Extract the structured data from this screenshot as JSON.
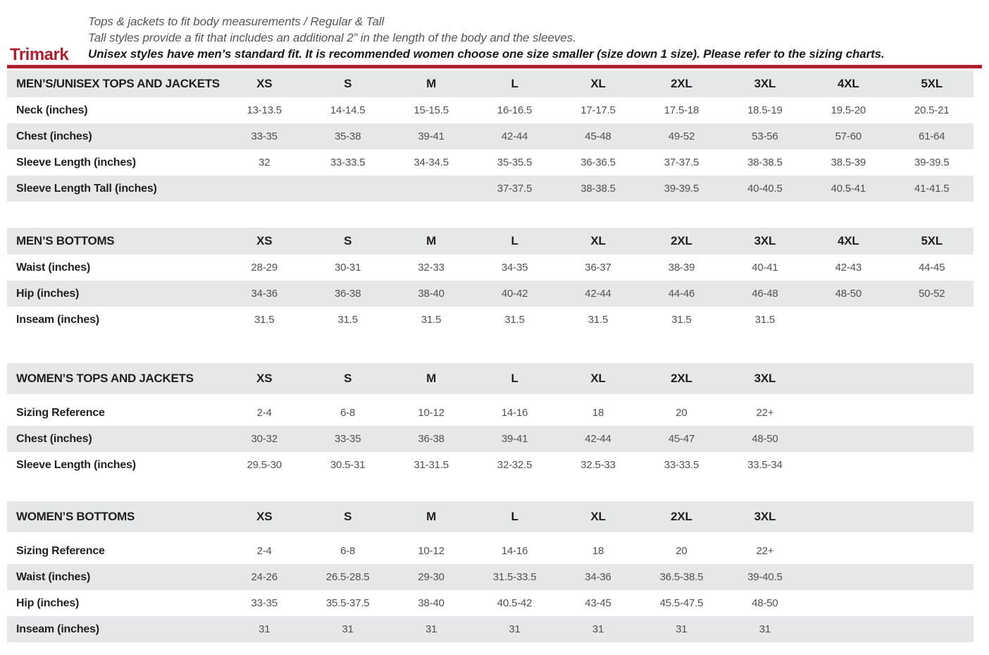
{
  "page": {
    "brand": "Trimark",
    "intro_line1": "Tops & jackets to fit body measurements / Regular & Tall",
    "intro_line2": "Tall styles provide a fit that includes an additional 2” in the length of the body and the sleeves.",
    "intro_line3": "Unisex styles have men’s standard fit. It is recommended women choose one size smaller (size down 1 size).  Please refer to the sizing charts.",
    "accent_color": "#ad1f2d",
    "row_alt_color": "#e6e7e8"
  },
  "tables": [
    {
      "title": "MEN’S/UNISEX TOPS AND JACKETS",
      "columns": [
        "XS",
        "S",
        "M",
        "L",
        "XL",
        "2XL",
        "3XL",
        "4XL",
        "5XL"
      ],
      "rows": [
        {
          "label": "Neck (inches)",
          "values": [
            "13-13.5",
            "14-14.5",
            "15-15.5",
            "16-16.5",
            "17-17.5",
            "17.5-18",
            "18.5-19",
            "19.5-20",
            "20.5-21"
          ]
        },
        {
          "label": "Chest (inches)",
          "values": [
            "33-35",
            "35-38",
            "39-41",
            "42-44",
            "45-48",
            "49-52",
            "53-56",
            "57-60",
            "61-64"
          ]
        },
        {
          "label": "Sleeve Length (inches)",
          "values": [
            "32",
            "33-33.5",
            "34-34.5",
            "35-35.5",
            "36-36.5",
            "37-37.5",
            "38-38.5",
            "38.5-39",
            "39-39.5"
          ]
        },
        {
          "label": "Sleeve Length Tall (inches)",
          "values": [
            "",
            "",
            "",
            "37-37.5",
            "38-38.5",
            "39-39.5",
            "40-40.5",
            "40.5-41",
            "41-41.5"
          ]
        }
      ]
    },
    {
      "title": "MEN’S BOTTOMS",
      "columns": [
        "XS",
        "S",
        "M",
        "L",
        "XL",
        "2XL",
        "3XL",
        "4XL",
        "5XL"
      ],
      "rows": [
        {
          "label": "Waist (inches)",
          "values": [
            "28-29",
            "30-31",
            "32-33",
            "34-35",
            "36-37",
            "38-39",
            "40-41",
            "42-43",
            "44-45"
          ]
        },
        {
          "label": "Hip (inches)",
          "values": [
            "34-36",
            "36-38",
            "38-40",
            "40-42",
            "42-44",
            "44-46",
            "46-48",
            "48-50",
            "50-52"
          ]
        },
        {
          "label": "Inseam (inches)",
          "values": [
            "31.5",
            "31.5",
            "31.5",
            "31.5",
            "31.5",
            "31.5",
            "31.5",
            "",
            ""
          ]
        }
      ]
    },
    {
      "title": "WOMEN’S TOPS AND JACKETS",
      "columns": [
        "XS",
        "S",
        "M",
        "L",
        "XL",
        "2XL",
        "3XL"
      ],
      "rows": [
        {
          "label": "Sizing Reference",
          "values": [
            "2-4",
            "6-8",
            "10-12",
            "14-16",
            "18",
            "20",
            "22+"
          ]
        },
        {
          "label": "Chest (inches)",
          "values": [
            "30-32",
            "33-35",
            "36-38",
            "39-41",
            "42-44",
            "45-47",
            "48-50"
          ]
        },
        {
          "label": "Sleeve Length (inches)",
          "values": [
            "29.5-30",
            "30.5-31",
            "31-31.5",
            "32-32.5",
            "32.5-33",
            "33-33.5",
            "33.5-34"
          ]
        }
      ]
    },
    {
      "title": "WOMEN’S BOTTOMS",
      "columns": [
        "XS",
        "S",
        "M",
        "L",
        "XL",
        "2XL",
        "3XL"
      ],
      "rows": [
        {
          "label": "Sizing Reference",
          "values": [
            "2-4",
            "6-8",
            "10-12",
            "14-16",
            "18",
            "20",
            "22+"
          ]
        },
        {
          "label": "Waist (inches)",
          "values": [
            "24-26",
            "26.5-28.5",
            "29-30",
            "31.5-33.5",
            "34-36",
            "36.5-38.5",
            "39-40.5"
          ]
        },
        {
          "label": "Hip (inches)",
          "values": [
            "33-35",
            "35.5-37.5",
            "38-40",
            "40.5-42",
            "43-45",
            "45.5-47.5",
            "48-50"
          ]
        },
        {
          "label": "Inseam (inches)",
          "values": [
            "31",
            "31",
            "31",
            "31",
            "31",
            "31",
            "31"
          ]
        }
      ]
    }
  ]
}
